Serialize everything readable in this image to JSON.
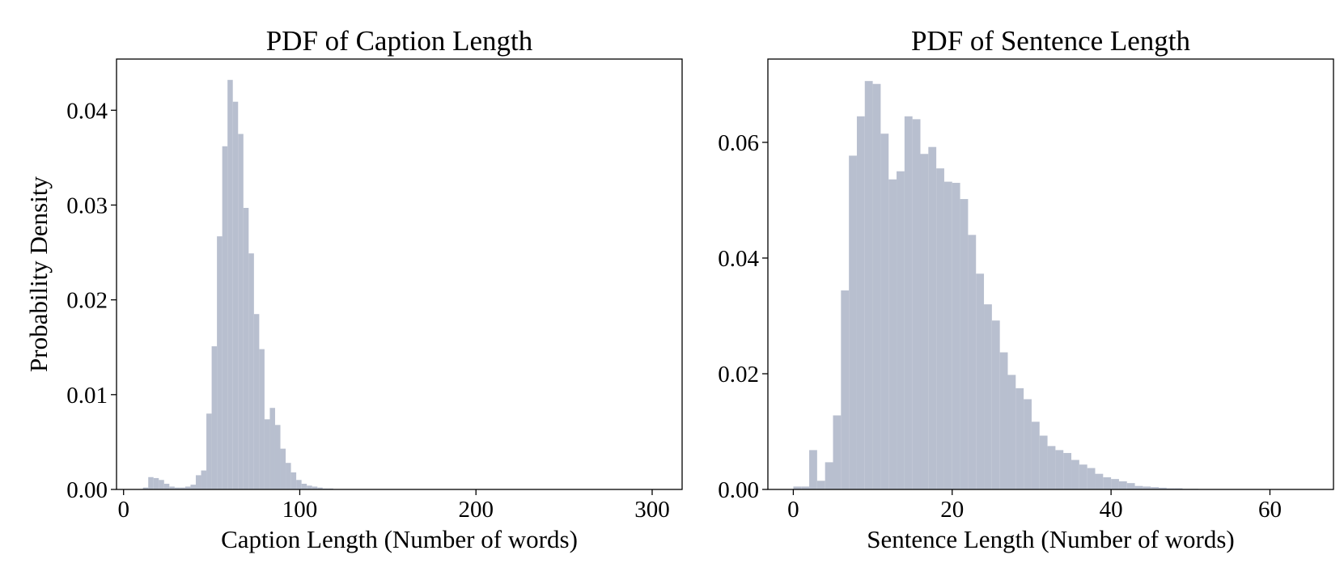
{
  "chart_data": [
    {
      "type": "histogram",
      "title": "PDF of Caption Length",
      "xlabel": "Caption Length (Number of words)",
      "ylabel": "Probability Density",
      "color": "#b8bfcf",
      "bins": [
        11,
        14,
        17,
        20,
        23,
        26,
        29,
        32,
        35,
        38,
        41,
        44,
        47,
        50,
        53,
        56,
        59,
        62,
        65,
        68,
        71,
        74,
        77,
        80,
        83,
        86,
        89,
        92,
        95,
        98,
        101,
        104,
        107,
        110,
        113,
        116,
        119,
        122,
        125
      ],
      "values": [
        0.0002,
        0.0013,
        0.0012,
        0.001,
        0.0006,
        0.0003,
        0.0002,
        0.0002,
        0.0003,
        0.0005,
        0.0015,
        0.002,
        0.008,
        0.0151,
        0.0267,
        0.0362,
        0.0432,
        0.0409,
        0.0375,
        0.0297,
        0.0249,
        0.0185,
        0.0148,
        0.0074,
        0.0086,
        0.0068,
        0.0043,
        0.0028,
        0.0018,
        0.001,
        0.0006,
        0.0004,
        0.0003,
        0.0002,
        0.0001,
        0.0001,
        0,
        0
      ],
      "xlim": [
        -4,
        317
      ],
      "ylim": [
        0,
        0.0454
      ],
      "xticks": [
        0,
        100,
        200,
        300
      ],
      "yticks": [
        {
          "value": 0,
          "label": "0.00"
        },
        0.01,
        0.02,
        0.03,
        0.04
      ]
    },
    {
      "type": "histogram",
      "title": "PDF of Sentence Length",
      "xlabel": "Sentence Length (Number of words)",
      "color": "#b8bfcf",
      "bins": [
        0,
        1,
        2,
        3,
        4,
        5,
        6,
        7,
        8,
        9,
        10,
        11,
        12,
        13,
        14,
        15,
        16,
        17,
        18,
        19,
        20,
        21,
        22,
        23,
        24,
        25,
        26,
        27,
        28,
        29,
        30,
        31,
        32,
        33,
        34,
        35,
        36,
        37,
        38,
        39,
        40,
        41,
        42,
        43,
        44,
        45,
        46,
        47,
        48,
        49,
        50,
        51,
        52,
        53,
        54,
        55,
        56,
        57,
        58,
        59,
        60,
        61,
        62,
        63,
        64,
        65
      ],
      "values": [
        0.0005,
        0.0005,
        0.0068,
        0.0015,
        0.0047,
        0.0128,
        0.0344,
        0.0577,
        0.0645,
        0.0706,
        0.0701,
        0.0615,
        0.0536,
        0.055,
        0.0645,
        0.064,
        0.058,
        0.0592,
        0.0555,
        0.0532,
        0.053,
        0.0502,
        0.044,
        0.0373,
        0.032,
        0.0292,
        0.0237,
        0.0198,
        0.0175,
        0.0156,
        0.0117,
        0.0093,
        0.0075,
        0.0068,
        0.0063,
        0.0051,
        0.0043,
        0.0037,
        0.0027,
        0.0021,
        0.0018,
        0.0014,
        0.0011,
        0.0006,
        0.0005,
        0.0004,
        0.0003,
        0.0002,
        0.0002,
        0.0001,
        0.0001,
        0,
        0,
        0,
        0,
        0,
        0,
        0,
        0,
        0,
        0,
        0,
        0,
        0,
        0
      ],
      "xlim": [
        -3.2,
        68
      ],
      "ylim": [
        0,
        0.0744
      ],
      "xticks": [
        0,
        20,
        40,
        60
      ],
      "yticks": [
        {
          "value": 0,
          "label": "0.00"
        },
        0.02,
        0.04,
        0.06
      ]
    }
  ]
}
